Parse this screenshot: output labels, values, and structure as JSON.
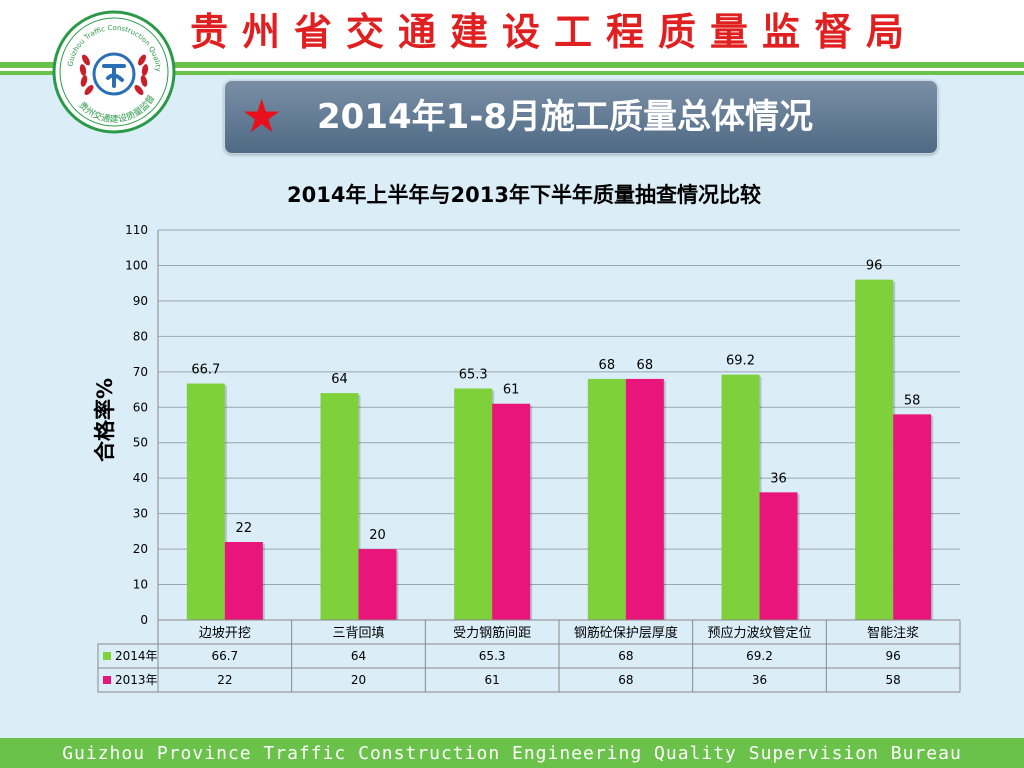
{
  "header": {
    "title": "贵州省交通建设工程质量监督局"
  },
  "logo": {
    "outer_text": "Guizhou Traffic Construction Quality Supervision",
    "inner_text": "贵州交通建设质量监督"
  },
  "banner": {
    "title": "2014年1-8月施工质量总体情况"
  },
  "chart_data": {
    "type": "bar",
    "title": "2014年上半年与2013年下半年质量抽查情况比较",
    "ylabel": "合格率%",
    "xlabel": "",
    "ylim": [
      0,
      110
    ],
    "ytick_step": 10,
    "grid": true,
    "legend": "data-table",
    "categories": [
      "边坡开挖",
      "三背回填",
      "受力钢筋间距",
      "钢筋砼保护层厚度",
      "预应力波纹管定位",
      "智能注浆"
    ],
    "series": [
      {
        "name": "2014年",
        "color": "#7fd13b",
        "values": [
          66.7,
          64,
          65.3,
          68,
          69.2,
          96
        ]
      },
      {
        "name": "2013年",
        "color": "#ea157a",
        "values": [
          22,
          20,
          61,
          68,
          36,
          58
        ]
      }
    ]
  },
  "footer": {
    "text": "Guizhou Province Traffic Construction Engineering Quality Supervision Bureau"
  }
}
